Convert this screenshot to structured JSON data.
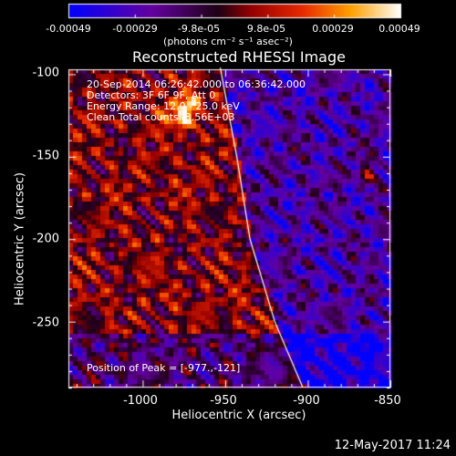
{
  "colorbar": {
    "ticks": [
      "-0.00049",
      "-0.00029",
      "-9.8e-05",
      "9.8e-05",
      "0.00029",
      "0.00049"
    ],
    "unit_line": "(photons cm⁻² s⁻¹ asec⁻²)"
  },
  "plot": {
    "title": "Reconstructed RHESSI Image",
    "info": {
      "time": "20-Sep-2014 06:26:42.000 to 06:36:42.000",
      "detectors": "Detectors: 3F 6F 9F, Att 0",
      "energy": "Energy Range: 12.0 - 25.0 keV",
      "clean": "Clean     Total counts: 3.56E+03"
    },
    "peak_label": "Position of Peak = [-977.,-121]",
    "xlabel": "Heliocentric X (arcsec)",
    "ylabel": "Heliocentric Y (arcsec)"
  },
  "chart_data": {
    "type": "heatmap",
    "title": "Reconstructed RHESSI Image",
    "xlabel": "Heliocentric X (arcsec)",
    "ylabel": "Heliocentric Y (arcsec)",
    "xlim": [
      -1045,
      -850
    ],
    "ylim": [
      -290,
      -97
    ],
    "x_ticks": [
      "-1000",
      "-950",
      "-900",
      "-850"
    ],
    "y_ticks": [
      "-100",
      "-150",
      "-200",
      "-250"
    ],
    "colorbar_range": [
      -0.00049,
      0.00049
    ],
    "limb_curve_x_at_y": [
      [
        -96,
        -953
      ],
      [
        -150,
        -943
      ],
      [
        -200,
        -935
      ],
      [
        -250,
        -920
      ],
      [
        -290,
        -903
      ]
    ],
    "peak": [
      -977,
      -121
    ]
  },
  "footer": {
    "date": "12-May-2017 11:24"
  }
}
